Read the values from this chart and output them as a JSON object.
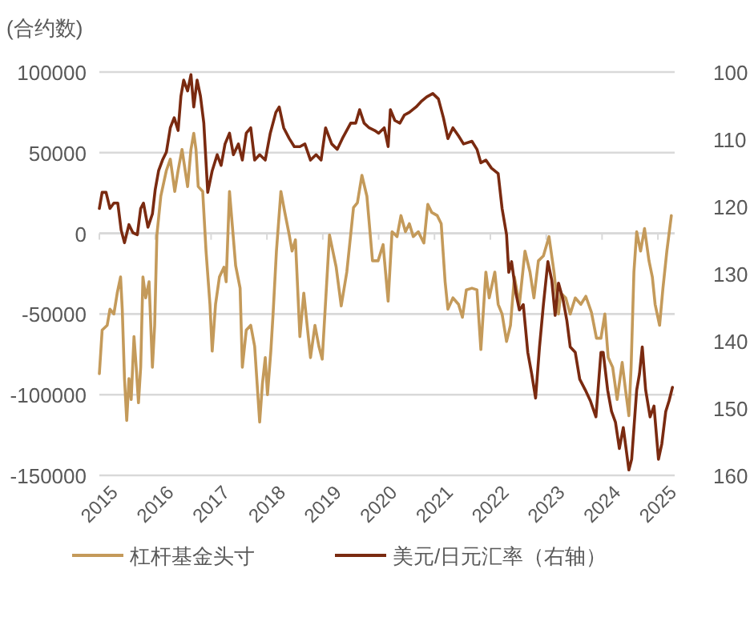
{
  "chart_data": {
    "type": "line",
    "ylabel": "(合约数)",
    "xlim": [
      2015,
      2025.3
    ],
    "xticks": [
      2015,
      2016,
      2017,
      2018,
      2019,
      2020,
      2021,
      2022,
      2023,
      2024,
      2025
    ],
    "ylim": [
      -150000,
      100000
    ],
    "yticks": [
      -150000,
      -100000,
      -50000,
      0,
      50000,
      100000
    ],
    "y2lim": [
      160,
      100
    ],
    "y2ticks": [
      100,
      110,
      120,
      130,
      140,
      150,
      160
    ],
    "grid": "y",
    "legend": "bottom",
    "series": [
      {
        "name": "杠杆基金头寸",
        "color": "#c49a5a",
        "x": [
          2015.0,
          2015.05,
          2015.14,
          2015.19,
          2015.26,
          2015.32,
          2015.38,
          2015.41,
          2015.45,
          2015.49,
          2015.53,
          2015.57,
          2015.62,
          2015.66,
          2015.7,
          2015.74,
          2015.78,
          2015.83,
          2015.89,
          2015.95,
          2015.99,
          2016.03,
          2016.1,
          2016.2,
          2016.27,
          2016.35,
          2016.41,
          2016.48,
          2016.58,
          2016.64,
          2016.69,
          2016.73,
          2016.77,
          2016.85,
          2016.91,
          2016.98,
          2017.02,
          2017.08,
          2017.15,
          2017.23,
          2017.27,
          2017.33,
          2017.44,
          2017.52,
          2017.56,
          2017.63,
          2017.71,
          2017.78,
          2017.87,
          2017.92,
          2017.97,
          2018.01,
          2018.07,
          2018.11,
          2018.17,
          2018.25,
          2018.32,
          2018.4,
          2018.45,
          2018.51,
          2018.59,
          2018.66,
          2018.78,
          2018.86,
          2018.93,
          2018.99,
          2019.12,
          2019.24,
          2019.33,
          2019.43,
          2019.55,
          2019.62,
          2019.7,
          2019.79,
          2019.89,
          2019.99,
          2020.08,
          2020.17,
          2020.24,
          2020.33,
          2020.4,
          2020.48,
          2020.55,
          2020.62,
          2020.71,
          2020.81,
          2020.88,
          2020.95,
          2021.05,
          2021.12,
          2021.19,
          2021.24,
          2021.33,
          2021.43,
          2021.5,
          2021.57,
          2021.67,
          2021.76,
          2021.83,
          2021.92,
          2021.98,
          2022.08,
          2022.14,
          2022.21,
          2022.29,
          2022.36,
          2022.43,
          2022.52,
          2022.62,
          2022.71,
          2022.78,
          2022.86,
          2022.95,
          2023.05,
          2023.14,
          2023.22,
          2023.26,
          2023.35,
          2023.43,
          2023.52,
          2023.62,
          2023.71,
          2023.81,
          2023.9,
          2023.98,
          2024.05,
          2024.11,
          2024.19,
          2024.27,
          2024.36,
          2024.42,
          2024.48,
          2024.52,
          2024.57,
          2024.62,
          2024.69,
          2024.76,
          2024.84,
          2024.9,
          2024.95,
          2025.03,
          2025.09,
          2025.16,
          2025.24
        ],
        "values": [
          -87000,
          -60000,
          -57000,
          -47000,
          -50000,
          -37000,
          -27000,
          -47000,
          -90000,
          -116000,
          -90000,
          -103000,
          -64000,
          -83000,
          -105000,
          -83000,
          -27000,
          -40000,
          -30000,
          -83000,
          -57000,
          -1000,
          23000,
          39000,
          46000,
          26000,
          39000,
          52000,
          29000,
          52000,
          62000,
          52000,
          29000,
          26000,
          -11000,
          -44000,
          -73000,
          -44000,
          -27000,
          -21000,
          -30000,
          26000,
          -20000,
          -34000,
          -83000,
          -60000,
          -57000,
          -70000,
          -117000,
          -93000,
          -77000,
          -100000,
          -73000,
          -50000,
          -11000,
          26000,
          13000,
          -1000,
          -11000,
          -4000,
          -64000,
          -37000,
          -77000,
          -57000,
          -70000,
          -78000,
          -1000,
          -21000,
          -45000,
          -24000,
          16000,
          19000,
          36000,
          23000,
          -17000,
          -17000,
          -7000,
          -42000,
          1000,
          -2000,
          11000,
          1000,
          6000,
          -2000,
          1000,
          -6000,
          18000,
          13000,
          11000,
          6000,
          -30000,
          -47000,
          -40000,
          -44000,
          -52000,
          -35000,
          -34000,
          -35000,
          -72000,
          -24000,
          -40000,
          -24000,
          -44000,
          -50000,
          -67000,
          -57000,
          -27000,
          -44000,
          -11000,
          -24000,
          -40000,
          -17000,
          -14000,
          -2000,
          -24000,
          -50000,
          -37000,
          -40000,
          -50000,
          -40000,
          -44000,
          -39000,
          -49000,
          -65000,
          -65000,
          -50000,
          -77000,
          -83000,
          -103000,
          -80000,
          -97000,
          -113000,
          -83000,
          -24000,
          1000,
          -11000,
          3000,
          -17000,
          -27000,
          -44000,
          -57000,
          -34000,
          -11000,
          11000
        ]
      },
      {
        "name": "美元/日元汇率（右轴）",
        "color": "#7a2a10",
        "axis": "y2",
        "x": [
          2015.0,
          2015.05,
          2015.12,
          2015.19,
          2015.26,
          2015.33,
          2015.39,
          2015.45,
          2015.53,
          2015.6,
          2015.68,
          2015.74,
          2015.79,
          2015.87,
          2015.95,
          2016.0,
          2016.06,
          2016.13,
          2016.2,
          2016.27,
          2016.34,
          2016.41,
          2016.46,
          2016.51,
          2016.58,
          2016.64,
          2016.69,
          2016.75,
          2016.81,
          2016.87,
          2016.94,
          2017.02,
          2017.11,
          2017.18,
          2017.25,
          2017.33,
          2017.4,
          2017.49,
          2017.56,
          2017.63,
          2017.71,
          2017.78,
          2017.87,
          2017.97,
          2018.06,
          2018.16,
          2018.22,
          2018.3,
          2018.4,
          2018.49,
          2018.59,
          2018.68,
          2018.78,
          2018.88,
          2018.97,
          2019.05,
          2019.16,
          2019.26,
          2019.35,
          2019.5,
          2019.59,
          2019.66,
          2019.74,
          2019.83,
          2019.93,
          2020.0,
          2020.1,
          2020.17,
          2020.21,
          2020.29,
          2020.38,
          2020.46,
          2020.55,
          2020.67,
          2020.76,
          2020.86,
          2020.97,
          2021.07,
          2021.16,
          2021.24,
          2021.33,
          2021.43,
          2021.52,
          2021.67,
          2021.76,
          2021.83,
          2021.92,
          2022.02,
          2022.14,
          2022.21,
          2022.29,
          2022.33,
          2022.38,
          2022.46,
          2022.52,
          2022.59,
          2022.67,
          2022.74,
          2022.81,
          2022.88,
          2022.95,
          2023.03,
          2023.1,
          2023.16,
          2023.22,
          2023.3,
          2023.37,
          2023.43,
          2023.52,
          2023.6,
          2023.7,
          2023.79,
          2023.89,
          2023.98,
          2024.02,
          2024.1,
          2024.17,
          2024.24,
          2024.31,
          2024.38,
          2024.48,
          2024.53,
          2024.62,
          2024.67,
          2024.72,
          2024.78,
          2024.86,
          2024.93,
          2025.01,
          2025.07,
          2025.14,
          2025.2,
          2025.26
        ],
        "values": [
          120.3,
          117.9,
          117.9,
          120.3,
          119.5,
          119.5,
          123.5,
          125.4,
          122.7,
          123.9,
          124.2,
          120.3,
          119.5,
          123.1,
          121.1,
          117.5,
          114.7,
          113.1,
          111.9,
          108.3,
          106.8,
          108.7,
          103.6,
          101.2,
          102.8,
          100.4,
          105.2,
          101.2,
          103.6,
          107.6,
          117.9,
          114.7,
          112.3,
          113.9,
          110.7,
          109.1,
          112.3,
          110.7,
          113.1,
          109.1,
          108.3,
          113.1,
          112.3,
          113.1,
          109.1,
          106.0,
          105.2,
          108.3,
          109.9,
          111.1,
          111.1,
          110.7,
          113.1,
          112.3,
          113.1,
          108.3,
          110.7,
          111.5,
          109.9,
          107.6,
          107.6,
          105.6,
          107.6,
          108.3,
          108.7,
          109.1,
          108.3,
          111.1,
          105.6,
          107.2,
          107.6,
          106.4,
          106.0,
          105.2,
          104.4,
          103.7,
          103.2,
          104.0,
          106.8,
          109.9,
          108.3,
          109.5,
          110.7,
          110.3,
          111.5,
          113.5,
          113.1,
          114.3,
          115.1,
          120.3,
          124.2,
          129.8,
          128.2,
          133.0,
          135.4,
          134.6,
          141.7,
          144.9,
          148.5,
          140.9,
          134.6,
          128.2,
          131.0,
          136.2,
          131.4,
          133.8,
          137.0,
          140.9,
          141.7,
          145.7,
          147.3,
          148.9,
          151.3,
          141.7,
          141.7,
          147.3,
          150.5,
          152.1,
          156.0,
          152.9,
          159.2,
          157.6,
          147.3,
          144.9,
          140.9,
          147.3,
          151.3,
          149.7,
          157.6,
          155.3,
          150.5,
          148.9,
          146.9
        ]
      }
    ]
  }
}
